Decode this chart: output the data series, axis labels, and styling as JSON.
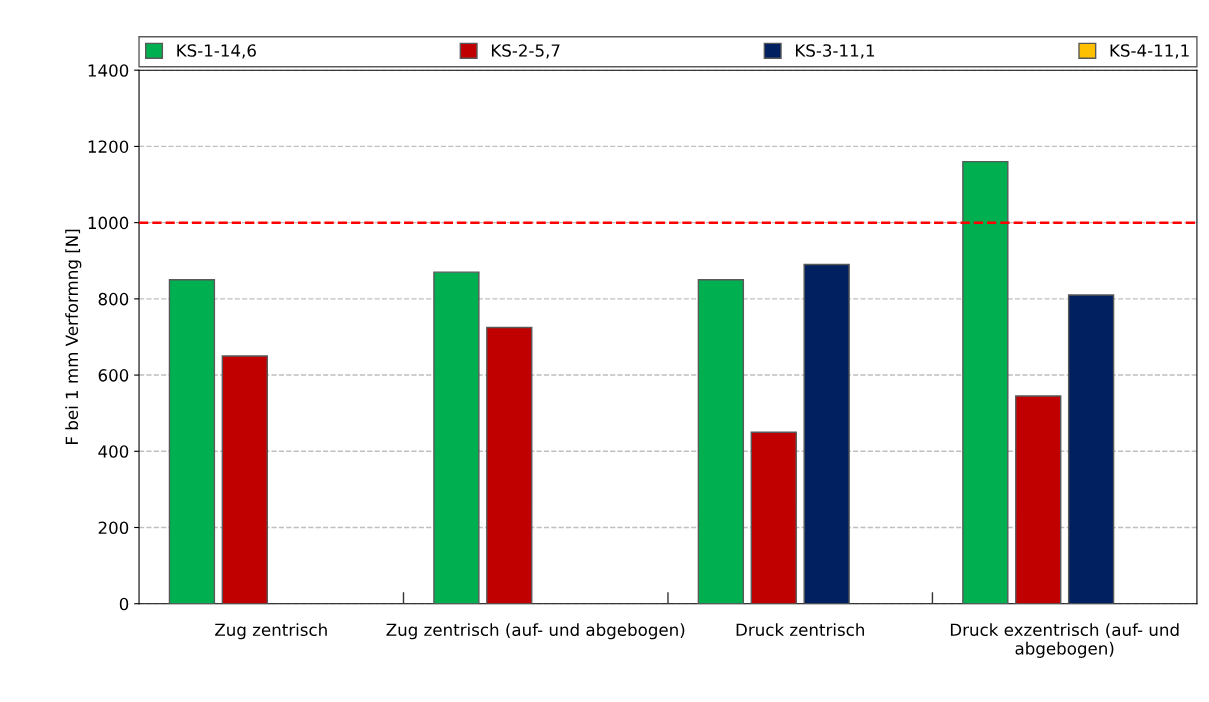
{
  "chart_data": {
    "type": "bar",
    "ylabel": "F bei 1 mm Verformng [N]",
    "categories": [
      "Zug zentrisch",
      "Zug zentrisch (auf- und abgebogen)",
      "Druck zentrisch",
      "Druck exzentrisch (auf- und abgebogen)"
    ],
    "series": [
      {
        "name": "KS-1-14,6",
        "color": "#00b050",
        "values": [
          850,
          870,
          850,
          1160
        ]
      },
      {
        "name": "KS-2-5,7",
        "color": "#c00000",
        "values": [
          650,
          725,
          450,
          545
        ]
      },
      {
        "name": "KS-3-11,1",
        "color": "#002060",
        "values": [
          null,
          null,
          890,
          810
        ]
      },
      {
        "name": "KS-4-11,1",
        "color": "#ffc000",
        "values": [
          null,
          null,
          null,
          null
        ]
      }
    ],
    "ylim": [
      0,
      1400
    ],
    "yticks": [
      0,
      200,
      400,
      600,
      800,
      1000,
      1200,
      1400
    ],
    "grid": "y",
    "legend": "top",
    "ref_lines": [
      {
        "axis": "y",
        "value": 1000,
        "color": "#ff0000",
        "line_style": "dashed"
      }
    ]
  }
}
